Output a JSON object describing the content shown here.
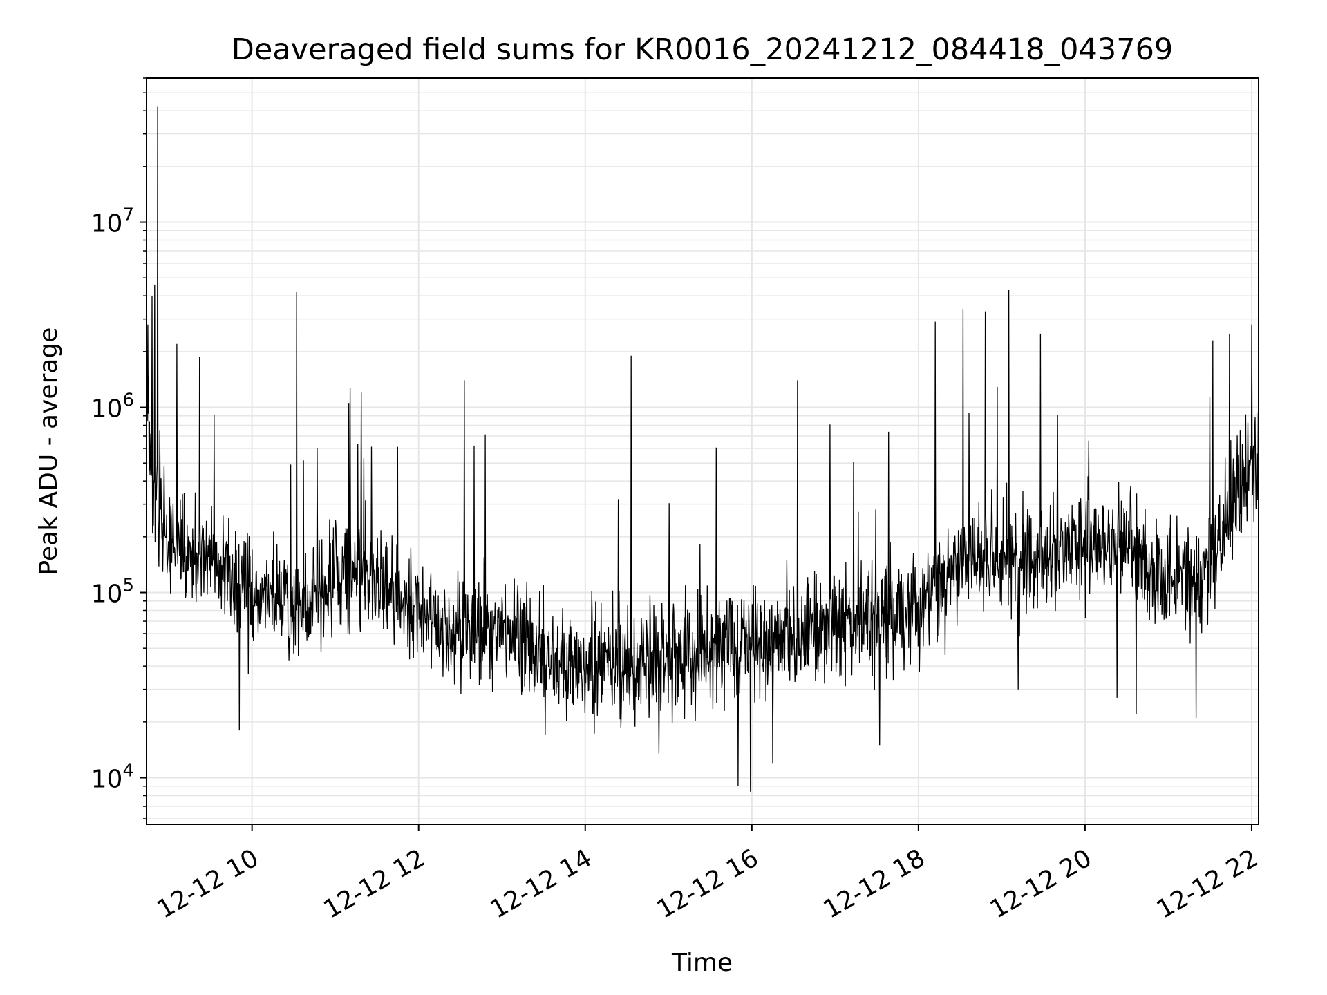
{
  "chart_data": {
    "type": "line",
    "title": "Deaveraged field sums for KR0016_20241212_084418_043769",
    "xlabel": "Time",
    "ylabel": "Peak ADU - average",
    "yscale": "log",
    "xlim": [
      "12-12 08:44",
      "12-12 22:05"
    ],
    "ylim": [
      5600,
      60000000
    ],
    "grid": true,
    "line_color": "#000000",
    "grid_color": "#e6e6e6",
    "x_ticks": [
      {
        "label": "12-12 10",
        "hour": 10
      },
      {
        "label": "12-12 12",
        "hour": 12
      },
      {
        "label": "12-12 14",
        "hour": 14
      },
      {
        "label": "12-12 16",
        "hour": 16
      },
      {
        "label": "12-12 18",
        "hour": 18
      },
      {
        "label": "12-12 20",
        "hour": 20
      },
      {
        "label": "12-12 22",
        "hour": 22
      }
    ],
    "y_ticks": [
      {
        "exp": 4,
        "base": "10",
        "sup": "4"
      },
      {
        "exp": 5,
        "base": "10",
        "sup": "5"
      },
      {
        "exp": 6,
        "base": "10",
        "sup": "6"
      },
      {
        "exp": 7,
        "base": "10",
        "sup": "7"
      }
    ],
    "series": [
      {
        "x": [
          "12-12 08:44",
          "12-12 08:46",
          "12-12 08:48",
          "12-12 08:52",
          "12-12 08:56",
          "12-12 09:00",
          "12-12 09:06",
          "12-12 09:15",
          "12-12 09:30",
          "12-12 09:45",
          "12-12 10:00",
          "12-12 10:15",
          "12-12 10:30",
          "12-12 10:45",
          "12-12 11:00",
          "12-12 11:15",
          "12-12 11:30",
          "12-12 11:45",
          "12-12 12:00",
          "12-12 12:15",
          "12-12 12:30",
          "12-12 12:45",
          "12-12 13:00",
          "12-12 13:15",
          "12-12 13:30",
          "12-12 13:45",
          "12-12 14:00",
          "12-12 14:15",
          "12-12 14:30",
          "12-12 14:45",
          "12-12 15:00",
          "12-12 15:15",
          "12-12 15:30",
          "12-12 15:45",
          "12-12 16:00",
          "12-12 16:15",
          "12-12 16:30",
          "12-12 16:45",
          "12-12 17:00",
          "12-12 17:15",
          "12-12 17:30",
          "12-12 17:45",
          "12-12 18:00",
          "12-12 18:15",
          "12-12 18:30",
          "12-12 18:45",
          "12-12 19:00",
          "12-12 19:15",
          "12-12 19:30",
          "12-12 19:45",
          "12-12 20:00",
          "12-12 20:15",
          "12-12 20:30",
          "12-12 20:45",
          "12-12 21:00",
          "12-12 21:15",
          "12-12 21:30",
          "12-12 21:45",
          "12-12 22:00",
          "12-12 22:05"
        ],
        "y": [
          1200000,
          600000,
          400000,
          300000,
          250000,
          200000,
          180000,
          170000,
          150000,
          120000,
          100000,
          90000,
          85000,
          95000,
          120000,
          130000,
          120000,
          90000,
          75000,
          65000,
          60000,
          62000,
          65000,
          58000,
          45000,
          40000,
          42000,
          45000,
          43000,
          40000,
          42000,
          48000,
          50000,
          52000,
          55000,
          58000,
          62000,
          64000,
          66000,
          68000,
          72000,
          78000,
          85000,
          110000,
          140000,
          155000,
          160000,
          160000,
          158000,
          162000,
          180000,
          200000,
          175000,
          140000,
          120000,
          110000,
          130000,
          250000,
          450000,
          600000
        ],
        "peaks": [
          {
            "t": "12-12 08:52",
            "v": 42000000
          },
          {
            "t": "12-12 08:50",
            "v": 4600000
          },
          {
            "t": "12-12 08:48",
            "v": 4000000
          },
          {
            "t": "12-12 08:45",
            "v": 2800000
          },
          {
            "t": "12-12 09:06",
            "v": 2200000
          },
          {
            "t": "12-12 10:32",
            "v": 4200000
          },
          {
            "t": "12-12 12:33",
            "v": 1400000
          },
          {
            "t": "12-12 14:33",
            "v": 1900000
          },
          {
            "t": "12-12 16:33",
            "v": 1400000
          },
          {
            "t": "12-12 18:12",
            "v": 2900000
          },
          {
            "t": "12-12 18:32",
            "v": 3400000
          },
          {
            "t": "12-12 18:48",
            "v": 3300000
          },
          {
            "t": "12-12 19:05",
            "v": 4300000
          },
          {
            "t": "12-12 19:28",
            "v": 2500000
          },
          {
            "t": "12-12 21:32",
            "v": 2300000
          },
          {
            "t": "12-12 21:44",
            "v": 2500000
          },
          {
            "t": "12-12 22:00",
            "v": 2800000
          }
        ],
        "troughs": [
          {
            "t": "12-12 09:51",
            "v": 18000
          },
          {
            "t": "12-12 13:31",
            "v": 17000
          },
          {
            "t": "12-12 14:53",
            "v": 13500
          },
          {
            "t": "12-12 15:50",
            "v": 9000
          },
          {
            "t": "12-12 15:59",
            "v": 8400
          },
          {
            "t": "12-12 16:15",
            "v": 12000
          },
          {
            "t": "12-12 17:32",
            "v": 15000
          },
          {
            "t": "12-12 19:12",
            "v": 30000
          },
          {
            "t": "12-12 20:23",
            "v": 27000
          },
          {
            "t": "12-12 20:37",
            "v": 22000
          },
          {
            "t": "12-12 21:20",
            "v": 21000
          }
        ]
      }
    ]
  }
}
